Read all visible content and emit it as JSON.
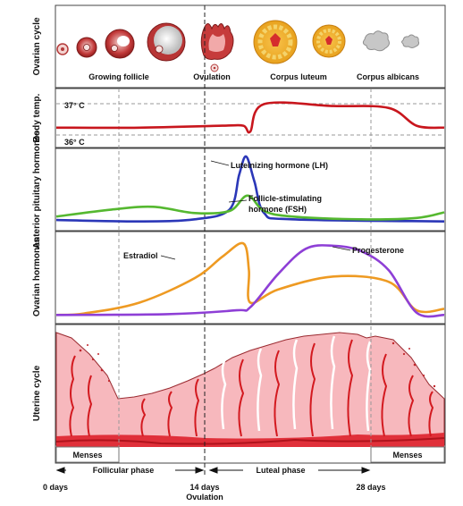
{
  "rows": {
    "ovarian_cycle": "Ovarian cycle",
    "body_temp": "Body temp.",
    "pituitary": "Anterior pituitary hormones",
    "ovarian_hormones": "Ovarian hormones",
    "uterine": "Uterine cycle"
  },
  "ovarian_stages": {
    "growing": "Growing follicle",
    "ovulation": "Ovulation",
    "luteum": "Corpus luteum",
    "albicans": "Corpus albicans"
  },
  "temp": {
    "high": "37° C",
    "low": "36° C"
  },
  "hormones": {
    "lh": "Luteinizing hormone (LH)",
    "fsh_1": "Follicle-stimulating",
    "fsh_2": "hormone (FSH)",
    "estradiol": "Estradiol",
    "progesterone": "Progesterone"
  },
  "uterine": {
    "menses_left": "Menses",
    "menses_right": "Menses"
  },
  "phases": {
    "follicular": "Follicular phase",
    "luteal": "Luteal phase"
  },
  "axis": {
    "day0": "0 days",
    "day14": "14 days",
    "ovulation": "Ovulation",
    "day28": "28 days"
  },
  "colors": {
    "temp": "#c8161d",
    "lh": "#2b37b8",
    "fsh": "#55b830",
    "estradiol": "#ee9a22",
    "progesterone": "#8e3fd6",
    "endometrium": "#f7b8bd",
    "vessel": "#d3191f"
  },
  "chart_data": [
    {
      "type": "line",
      "x_unit": "days",
      "xlim": [
        0,
        28
      ],
      "ylim": [
        36,
        37
      ],
      "series": [
        {
          "x": [
            0,
            6,
            12,
            13.5,
            14,
            15,
            20,
            24,
            26,
            28
          ],
          "values": [
            36.3,
            36.3,
            36.35,
            36.35,
            36.2,
            36.9,
            36.85,
            36.8,
            36.35,
            36.3
          ]
        }
      ]
    },
    {
      "type": "line",
      "x_unit": "days",
      "xlim": [
        0,
        28
      ],
      "ylim": [
        0,
        100
      ],
      "series": [
        {
          "name": "Luteinizing hormone (LH)",
          "x": [
            0,
            6,
            10,
            12.5,
            13.2,
            13.7,
            14.3,
            15,
            17,
            28
          ],
          "values": [
            5,
            3,
            6,
            20,
            70,
            96,
            60,
            15,
            6,
            3
          ]
        },
        {
          "name": "Follicle-stimulating hormone (FSH)",
          "x": [
            0,
            4,
            7,
            10,
            12.5,
            13.8,
            15,
            17,
            22,
            26,
            28
          ],
          "values": [
            10,
            20,
            24,
            15,
            18,
            40,
            18,
            10,
            6,
            8,
            16
          ]
        }
      ]
    },
    {
      "type": "line",
      "x_unit": "days",
      "xlim": [
        0,
        28
      ],
      "ylim": [
        0,
        100
      ],
      "series": [
        {
          "name": "Estradiol",
          "x": [
            0,
            2,
            6,
            10,
            12,
            13.5,
            13.9,
            14,
            16,
            20,
            24,
            26,
            28
          ],
          "values": [
            2,
            4,
            18,
            50,
            78,
            95,
            60,
            18,
            35,
            52,
            45,
            8,
            10
          ]
        },
        {
          "name": "Progesterone",
          "x": [
            0,
            8,
            13,
            14,
            16,
            18,
            20,
            22,
            24,
            26,
            28
          ],
          "values": [
            2,
            3,
            8,
            12,
            55,
            88,
            92,
            85,
            60,
            5,
            2
          ]
        }
      ]
    }
  ]
}
